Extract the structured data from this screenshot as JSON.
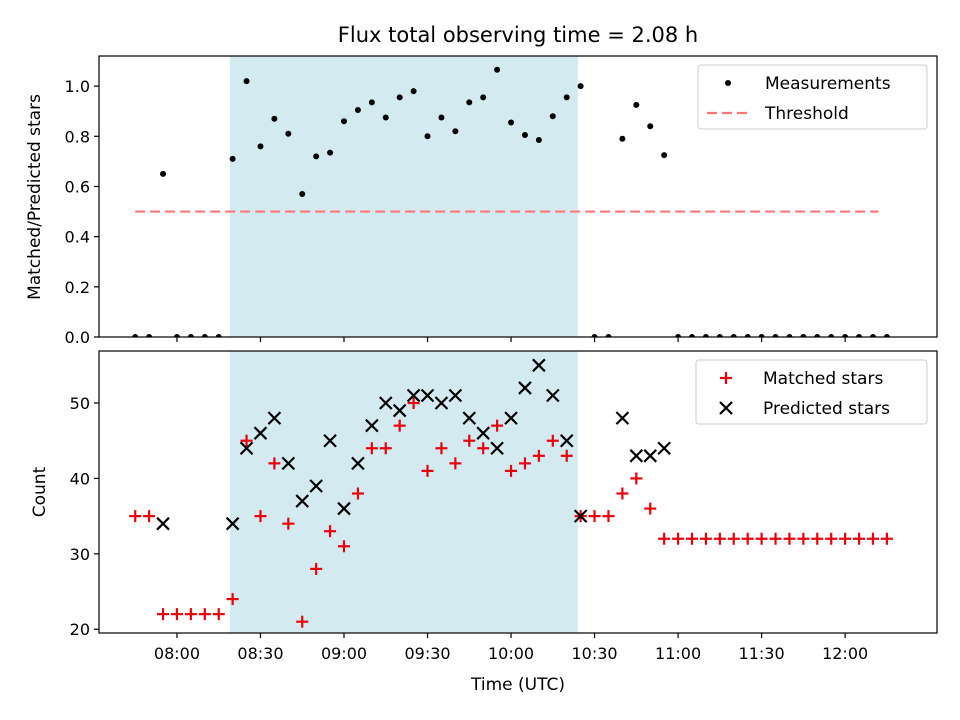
{
  "colors": {
    "measurements": "#000000",
    "threshold": "#ff7777",
    "matched": "#e8000b",
    "predicted": "#000000",
    "shade": "#d4eaf1"
  },
  "chart_data": [
    {
      "type": "scatter",
      "title": "Flux total observing time = 2.08 h",
      "ylabel": "Matched/Predicted stars",
      "xlabel": "",
      "x_axis": "time (minutes since 00:00 UTC)",
      "xlim": [
        452,
        753
      ],
      "ylim": [
        0,
        1.12
      ],
      "yticks": [
        0.0,
        0.2,
        0.4,
        0.6,
        0.8,
        1.0
      ],
      "ytick_labels": [
        "0.0",
        "0.2",
        "0.4",
        "0.6",
        "0.8",
        "1.0"
      ],
      "shaded_span": [
        "08:19",
        "10:24"
      ],
      "legend": {
        "placement": "top-right",
        "entries": [
          "Measurements",
          "Threshold"
        ]
      },
      "threshold": {
        "name": "Threshold",
        "y": 0.5,
        "x_start": "07:45",
        "x_end": "12:12"
      },
      "series": [
        {
          "name": "Measurements",
          "points": [
            [
              "07:45",
              0
            ],
            [
              "07:50",
              0
            ],
            [
              "07:55",
              0.65
            ],
            [
              "08:00",
              0
            ],
            [
              "08:05",
              0
            ],
            [
              "08:10",
              0
            ],
            [
              "08:15",
              0
            ],
            [
              "08:20",
              0.71
            ],
            [
              "08:25",
              1.02
            ],
            [
              "08:30",
              0.76
            ],
            [
              "08:35",
              0.87
            ],
            [
              "08:40",
              0.81
            ],
            [
              "08:45",
              0.57
            ],
            [
              "08:50",
              0.72
            ],
            [
              "08:55",
              0.735
            ],
            [
              "09:00",
              0.86
            ],
            [
              "09:05",
              0.905
            ],
            [
              "09:10",
              0.935
            ],
            [
              "09:15",
              0.875
            ],
            [
              "09:20",
              0.955
            ],
            [
              "09:25",
              0.98
            ],
            [
              "09:30",
              0.8
            ],
            [
              "09:35",
              0.875
            ],
            [
              "09:40",
              0.82
            ],
            [
              "09:45",
              0.935
            ],
            [
              "09:50",
              0.955
            ],
            [
              "09:55",
              1.065
            ],
            [
              "10:00",
              0.855
            ],
            [
              "10:05",
              0.805
            ],
            [
              "10:10",
              0.785
            ],
            [
              "10:15",
              0.88
            ],
            [
              "10:20",
              0.955
            ],
            [
              "10:25",
              1.0
            ],
            [
              "10:30",
              0
            ],
            [
              "10:35",
              0
            ],
            [
              "10:40",
              0.79
            ],
            [
              "10:45",
              0.925
            ],
            [
              "10:50",
              0.84
            ],
            [
              "10:55",
              0.725
            ],
            [
              "11:00",
              0
            ],
            [
              "11:05",
              0
            ],
            [
              "11:10",
              0
            ],
            [
              "11:15",
              0
            ],
            [
              "11:20",
              0
            ],
            [
              "11:25",
              0
            ],
            [
              "11:30",
              0
            ],
            [
              "11:35",
              0
            ],
            [
              "11:40",
              0
            ],
            [
              "11:45",
              0
            ],
            [
              "11:50",
              0
            ],
            [
              "11:55",
              0
            ],
            [
              "12:00",
              0
            ],
            [
              "12:05",
              0
            ],
            [
              "12:10",
              0
            ],
            [
              "12:15",
              0
            ]
          ]
        }
      ]
    },
    {
      "type": "scatter",
      "title": "",
      "ylabel": "Count",
      "xlabel": "Time (UTC)",
      "x_axis": "time (minutes since 00:00 UTC)",
      "xlim": [
        452,
        753
      ],
      "ylim": [
        19.5,
        56.9
      ],
      "yticks": [
        20,
        30,
        40,
        50
      ],
      "ytick_labels": [
        "20",
        "30",
        "40",
        "50"
      ],
      "xticks": [
        "08:00",
        "08:30",
        "09:00",
        "09:30",
        "10:00",
        "10:30",
        "11:00",
        "11:30",
        "12:00"
      ],
      "shaded_span": [
        "08:19",
        "10:24"
      ],
      "legend": {
        "placement": "top-right",
        "entries": [
          "Matched stars",
          "Predicted stars"
        ]
      },
      "series": [
        {
          "name": "Matched stars",
          "marker": "plus",
          "points": [
            [
              "07:45",
              35
            ],
            [
              "07:50",
              35
            ],
            [
              "07:55",
              22
            ],
            [
              "08:00",
              22
            ],
            [
              "08:05",
              22
            ],
            [
              "08:10",
              22
            ],
            [
              "08:15",
              22
            ],
            [
              "08:20",
              24
            ],
            [
              "08:25",
              45
            ],
            [
              "08:30",
              35
            ],
            [
              "08:35",
              42
            ],
            [
              "08:40",
              34
            ],
            [
              "08:45",
              21
            ],
            [
              "08:50",
              28
            ],
            [
              "08:55",
              33
            ],
            [
              "09:00",
              31
            ],
            [
              "09:05",
              38
            ],
            [
              "09:10",
              44
            ],
            [
              "09:15",
              44
            ],
            [
              "09:20",
              47
            ],
            [
              "09:25",
              50
            ],
            [
              "09:30",
              41
            ],
            [
              "09:35",
              44
            ],
            [
              "09:40",
              42
            ],
            [
              "09:45",
              45
            ],
            [
              "09:50",
              44
            ],
            [
              "09:55",
              47
            ],
            [
              "10:00",
              41
            ],
            [
              "10:05",
              42
            ],
            [
              "10:10",
              43
            ],
            [
              "10:15",
              45
            ],
            [
              "10:20",
              43
            ],
            [
              "10:25",
              35
            ],
            [
              "10:30",
              35
            ],
            [
              "10:35",
              35
            ],
            [
              "10:40",
              38
            ],
            [
              "10:45",
              40
            ],
            [
              "10:50",
              36
            ],
            [
              "10:55",
              32
            ],
            [
              "11:00",
              32
            ],
            [
              "11:05",
              32
            ],
            [
              "11:10",
              32
            ],
            [
              "11:15",
              32
            ],
            [
              "11:20",
              32
            ],
            [
              "11:25",
              32
            ],
            [
              "11:30",
              32
            ],
            [
              "11:35",
              32
            ],
            [
              "11:40",
              32
            ],
            [
              "11:45",
              32
            ],
            [
              "11:50",
              32
            ],
            [
              "11:55",
              32
            ],
            [
              "12:00",
              32
            ],
            [
              "12:05",
              32
            ],
            [
              "12:10",
              32
            ],
            [
              "12:15",
              32
            ]
          ]
        },
        {
          "name": "Predicted stars",
          "marker": "x",
          "points": [
            [
              "07:55",
              34
            ],
            [
              "08:20",
              34
            ],
            [
              "08:25",
              44
            ],
            [
              "08:30",
              46
            ],
            [
              "08:35",
              48
            ],
            [
              "08:40",
              42
            ],
            [
              "08:45",
              37
            ],
            [
              "08:50",
              39
            ],
            [
              "08:55",
              45
            ],
            [
              "09:00",
              36
            ],
            [
              "09:05",
              42
            ],
            [
              "09:10",
              47
            ],
            [
              "09:15",
              50
            ],
            [
              "09:20",
              49
            ],
            [
              "09:25",
              51
            ],
            [
              "09:30",
              51
            ],
            [
              "09:35",
              50
            ],
            [
              "09:40",
              51
            ],
            [
              "09:45",
              48
            ],
            [
              "09:50",
              46
            ],
            [
              "09:55",
              44
            ],
            [
              "10:00",
              48
            ],
            [
              "10:05",
              52
            ],
            [
              "10:10",
              55
            ],
            [
              "10:15",
              51
            ],
            [
              "10:20",
              45
            ],
            [
              "10:25",
              35
            ],
            [
              "10:40",
              48
            ],
            [
              "10:45",
              43
            ],
            [
              "10:50",
              43
            ],
            [
              "10:55",
              44
            ]
          ]
        }
      ]
    }
  ]
}
